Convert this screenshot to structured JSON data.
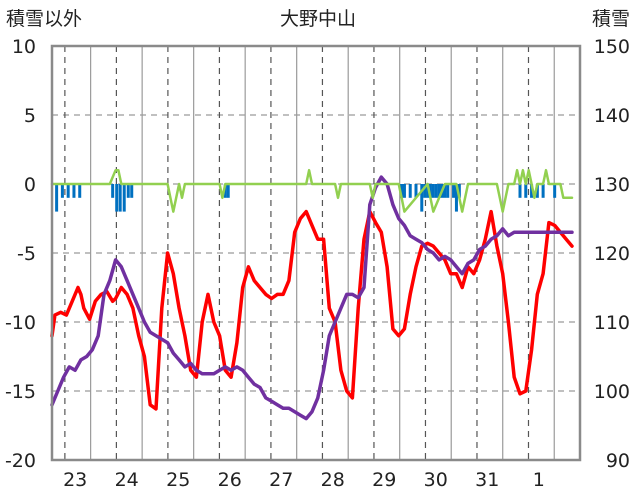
{
  "chart_data": {
    "type": "line",
    "title": "大野中山",
    "left_axis_label": "積雪以外",
    "right_axis_label": "積雪",
    "left_ylim": [
      -20,
      10
    ],
    "right_ylim": [
      90,
      150
    ],
    "left_ticks": [
      "10",
      "5",
      "0",
      "-5",
      "-10",
      "-15",
      "-20"
    ],
    "right_ticks": [
      "150",
      "140",
      "130",
      "120",
      "110",
      "100",
      "90"
    ],
    "x_tick_labels": [
      "23",
      "24",
      "25",
      "26",
      "27",
      "28",
      "29",
      "30",
      "31",
      "1"
    ],
    "grid": true,
    "series": [
      {
        "color": "#ff0000",
        "axis": "left",
        "x": [
          22.0,
          22.05,
          22.15,
          22.25,
          22.35,
          22.45,
          22.5,
          22.55,
          22.65,
          22.75,
          22.85,
          22.95,
          23.05,
          23.1,
          23.2,
          23.3,
          23.4,
          23.5,
          23.6,
          23.7,
          23.8,
          23.9,
          24.0,
          24.1,
          24.2,
          24.3,
          24.4,
          24.5,
          24.6,
          24.7,
          24.8,
          24.9,
          25.0,
          25.1,
          25.2,
          25.3,
          25.4,
          25.5,
          25.6,
          25.7,
          25.8,
          25.9,
          26.0,
          26.1,
          26.2,
          26.3,
          26.4,
          26.5,
          26.6,
          26.7,
          26.8,
          26.9,
          27.0,
          27.1,
          27.2,
          27.3,
          27.4,
          27.5,
          27.6,
          27.7,
          27.8,
          27.9,
          28.0,
          28.1,
          28.2,
          28.3,
          28.4,
          28.5,
          28.6,
          28.7,
          28.8,
          28.9,
          29.0,
          29.1,
          29.2,
          29.3,
          29.4,
          29.5,
          29.6,
          29.7,
          29.8,
          29.9,
          30.0,
          30.1,
          30.2,
          30.3,
          30.4,
          30.5,
          30.6,
          30.7,
          30.8,
          30.9,
          31.0
        ],
        "y": [
          -11,
          -9.5,
          -9.3,
          -9.5,
          -8.5,
          -7.5,
          -8.0,
          -9.0,
          -9.8,
          -8.5,
          -8.0,
          -7.8,
          -8.5,
          -8.3,
          -7.5,
          -8.0,
          -9.0,
          -11.0,
          -12.5,
          -16.0,
          -16.3,
          -9.0,
          -5.0,
          -6.5,
          -9.0,
          -11.0,
          -13.5,
          -14.0,
          -10.0,
          -8.0,
          -10.0,
          -11.0,
          -13.5,
          -14.0,
          -11.5,
          -7.5,
          -6.0,
          -7.0,
          -7.5,
          -8.0,
          -8.3,
          -8.0,
          -8.0,
          -7.0,
          -3.5,
          -2.5,
          -2.0,
          -3.0,
          -4.0,
          -4.0,
          -9.0,
          -10.0,
          -13.5,
          -15.0,
          -15.5,
          -9.0,
          -4.0,
          -2.0,
          -2.8,
          -3.5,
          -6.0,
          -10.5,
          -11.0,
          -10.5,
          -8.0,
          -6.0,
          -4.5,
          -4.3,
          -4.5,
          -5.0,
          -5.5,
          -6.5,
          -6.5,
          -7.5,
          -6.0,
          -6.5,
          -5.5,
          -4.0,
          -2.0,
          -4.5,
          -6.5,
          -10.0,
          -14.0,
          -15.2,
          -15.0,
          -12.0,
          -8.0,
          -6.5,
          -2.8,
          -3.0,
          -3.5,
          -4.0,
          -4.5
        ]
      },
      {
        "color": "#7030a0",
        "axis": "right",
        "x": [
          22.0,
          22.1,
          22.2,
          22.3,
          22.4,
          22.5,
          22.6,
          22.7,
          22.8,
          22.9,
          23.0,
          23.1,
          23.2,
          23.3,
          23.4,
          23.5,
          23.6,
          23.7,
          23.8,
          23.9,
          24.0,
          24.1,
          24.2,
          24.3,
          24.4,
          24.5,
          24.6,
          24.7,
          24.8,
          24.9,
          25.0,
          25.1,
          25.2,
          25.3,
          25.4,
          25.5,
          25.6,
          25.7,
          25.8,
          25.9,
          26.0,
          26.1,
          26.2,
          26.3,
          26.4,
          26.5,
          26.6,
          26.7,
          26.8,
          26.9,
          27.0,
          27.1,
          27.2,
          27.3,
          27.4,
          27.5,
          27.6,
          27.7,
          27.8,
          27.9,
          28.0,
          28.1,
          28.2,
          28.3,
          28.4,
          28.5,
          28.6,
          28.7,
          28.8,
          28.9,
          29.0,
          29.1,
          29.2,
          29.3,
          29.4,
          29.5,
          29.6,
          29.7,
          29.8,
          29.9,
          30.0,
          30.1,
          30.2,
          30.3,
          30.4,
          30.5,
          30.6,
          30.7,
          30.8,
          30.9,
          31.0
        ],
        "y": [
          98.0,
          100.0,
          102.0,
          103.5,
          103.0,
          104.5,
          105.0,
          106.0,
          108.0,
          114.0,
          116.0,
          119.0,
          118.0,
          116.0,
          114.0,
          112.0,
          110.0,
          108.5,
          108.0,
          107.5,
          107.0,
          105.5,
          104.5,
          103.5,
          104.0,
          103.0,
          102.5,
          102.5,
          102.5,
          103.0,
          103.5,
          103.0,
          103.5,
          103.0,
          102.0,
          101.0,
          100.5,
          99.0,
          98.5,
          98.0,
          97.5,
          97.5,
          97.0,
          96.5,
          96.0,
          97.0,
          99.0,
          103.0,
          108.0,
          110.0,
          112.0,
          114.0,
          114.0,
          113.5,
          115.0,
          127.0,
          129.5,
          131.0,
          130.0,
          127.0,
          125.0,
          124.0,
          122.5,
          122.0,
          121.5,
          120.5,
          120.0,
          119.0,
          119.5,
          119.0,
          118.0,
          117.0,
          118.5,
          119.0,
          120.5,
          121.0,
          122.0,
          122.5,
          123.5,
          122.5,
          123.0,
          123.0,
          123.0,
          123.0,
          123.0,
          123.0,
          123.0,
          123.0,
          123.0,
          123.0,
          123.0
        ]
      },
      {
        "color": "#92d050",
        "axis": "left",
        "x": [
          22.0,
          23.0,
          23.1,
          23.15,
          23.2,
          24.0,
          24.05,
          24.1,
          24.15,
          24.2,
          24.25,
          24.3,
          24.9,
          24.95,
          25.0,
          26.0,
          26.4,
          26.45,
          26.5,
          26.9,
          26.95,
          27.0,
          27.5,
          27.55,
          27.6,
          28.0,
          28.05,
          28.1,
          28.5,
          28.55,
          28.6,
          28.7,
          28.8,
          29.0,
          29.05,
          29.1,
          29.2,
          29.7,
          29.75,
          29.8,
          29.9,
          30.0,
          30.05,
          30.1,
          30.15,
          30.2,
          30.25,
          30.3,
          30.35,
          30.4,
          30.5,
          30.55,
          30.6,
          30.8,
          30.85,
          31.0
        ],
        "y": [
          0,
          0,
          1,
          1,
          0,
          0,
          -1,
          -2,
          -1,
          0,
          -1,
          0,
          0,
          -1,
          0,
          0,
          0,
          1,
          0,
          0,
          -1,
          0,
          0,
          -1,
          0,
          0,
          -1,
          -2,
          0,
          -1,
          -2,
          -1,
          0,
          0,
          -1,
          -2,
          0,
          0,
          -1,
          -2,
          0,
          0,
          1,
          0,
          1,
          0,
          1,
          0,
          -1,
          0,
          0,
          1,
          0,
          0,
          -1,
          -1
        ]
      }
    ],
    "bars": {
      "color": "#0070c0",
      "axis": "left",
      "x": [
        22.08,
        22.18,
        22.28,
        22.38,
        22.48,
        23.05,
        23.12,
        23.18,
        23.25,
        23.32,
        23.38,
        25.0,
        25.05,
        28.05,
        28.1,
        28.2,
        28.3,
        28.4,
        28.45,
        28.5,
        28.55,
        28.6,
        28.65,
        28.7,
        28.75,
        28.8,
        28.85,
        28.95,
        29.0,
        29.05,
        30.1,
        30.2,
        30.3,
        30.4,
        30.5,
        30.7
      ],
      "values": [
        -2,
        -1,
        -1,
        -1,
        -1,
        -1,
        -2,
        -2,
        -2,
        -1,
        -1,
        -1,
        -1,
        -1,
        -1,
        -1,
        -1,
        -2,
        -1,
        -1,
        -1,
        -1,
        -1,
        -1,
        -1,
        -1,
        -1,
        -1,
        -2,
        -1,
        -1,
        -1,
        -1,
        -1,
        -1,
        -1
      ]
    }
  }
}
